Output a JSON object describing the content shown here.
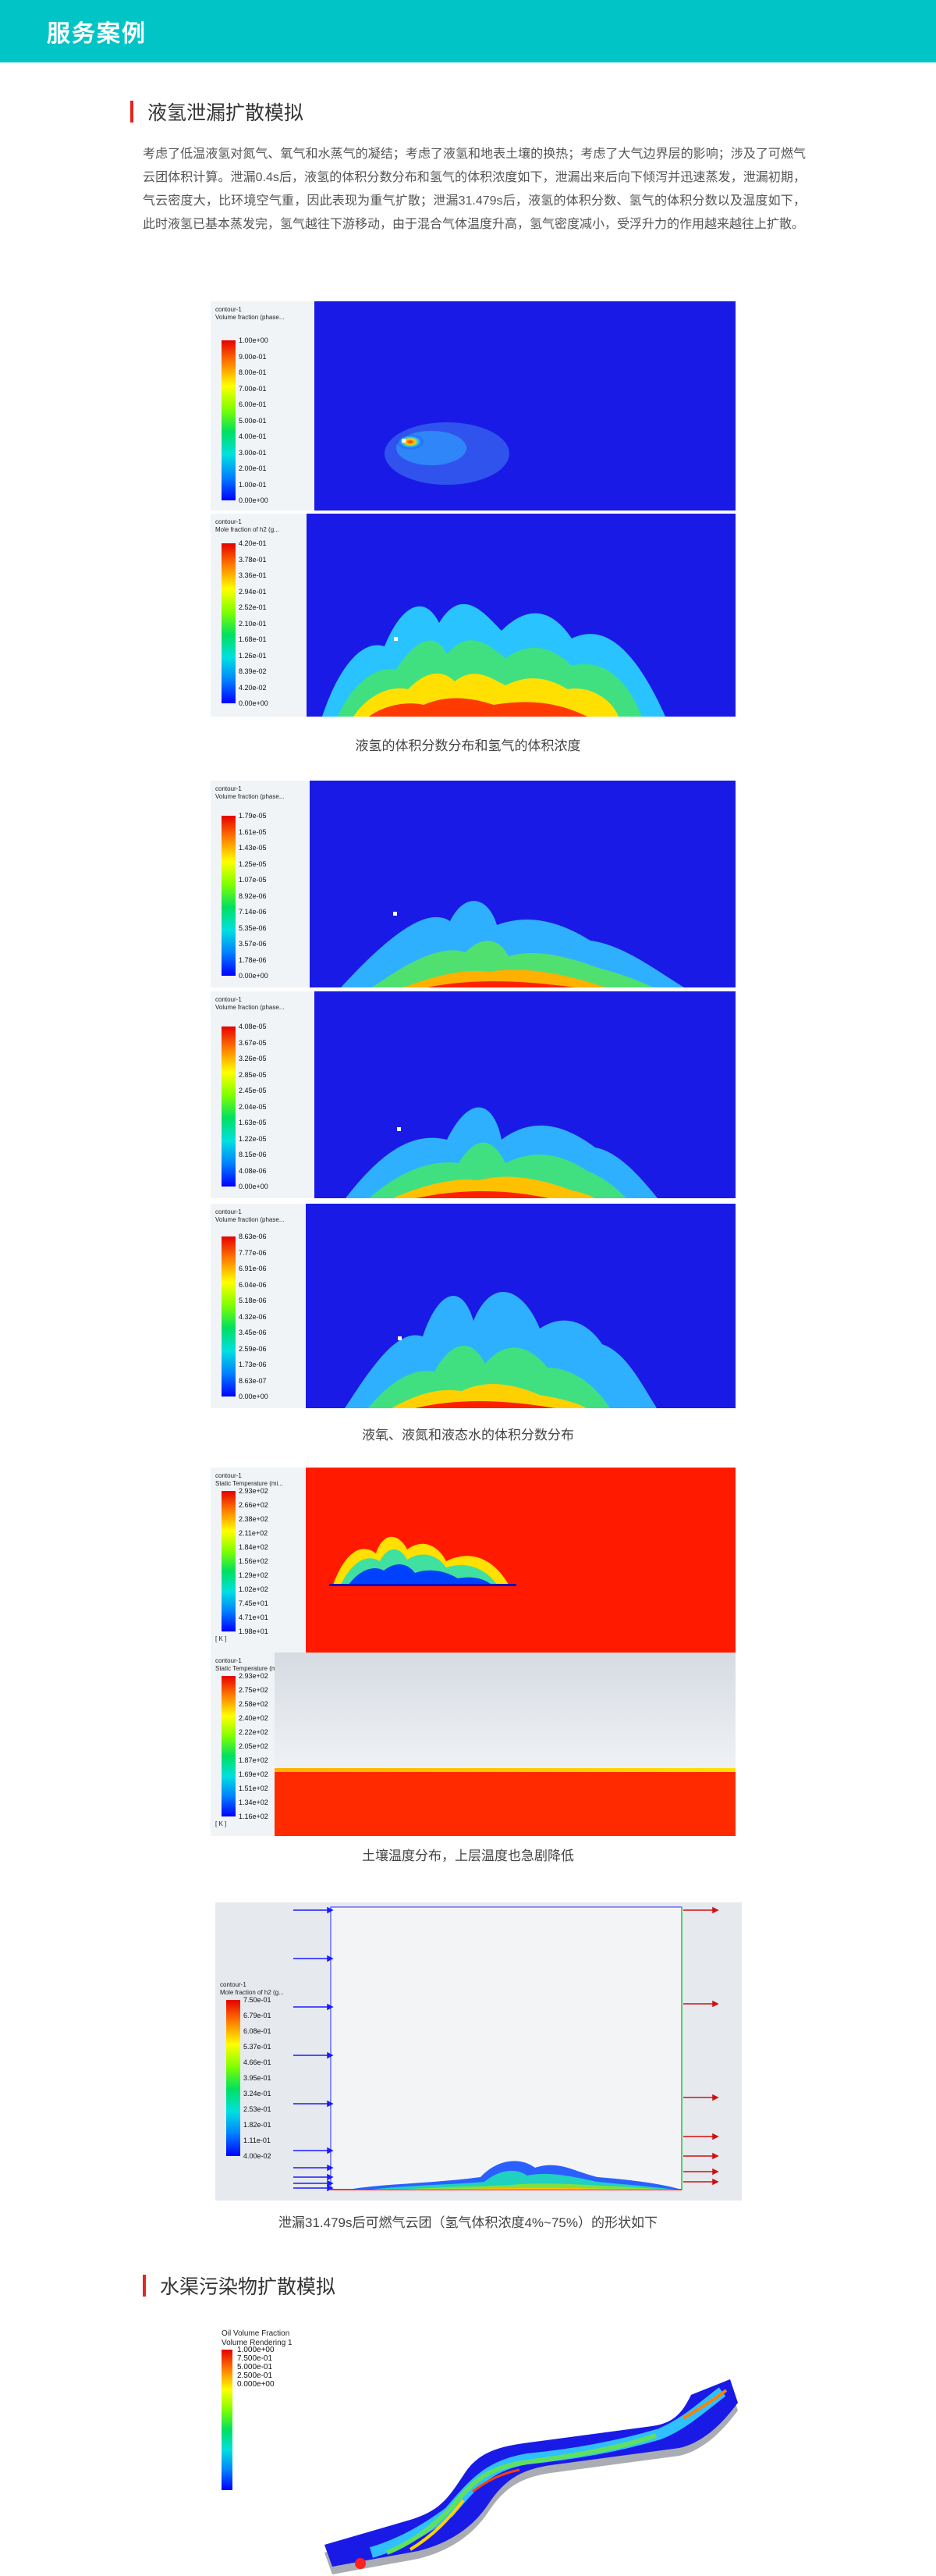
{
  "header": {
    "title": "服务案例"
  },
  "section1": {
    "title": "液氢泄漏扩散模拟",
    "intro": "考虑了低温液氢对氮气、氧气和水蒸气的凝结；考虑了液氢和地表土壤的换热；考虑了大气边界层的影响；涉及了可燃气云团体积计算。泄漏0.4s后，液氢的体积分数分布和氢气的体积浓度如下，泄漏出来后向下倾泻并迅速蒸发，泄漏初期，气云密度大，比环境空气重，因此表现为重气扩散；泄漏31.479s后，液氢的体积分数、氢气的体积分数以及温度如下，此时液氢已基本蒸发完，氢气越往下游移动，由于混合气体温度升高，氢气密度减小，受浮升力的作用越来越往上扩散。",
    "fig1": {
      "caption": "液氢的体积分数分布和氢气的体积浓度",
      "p1": {
        "legend": "contour-1\nVolume fraction (phase...",
        "ticks": [
          "1.00e+00",
          "9.00e-01",
          "8.00e-01",
          "7.00e-01",
          "6.00e-01",
          "5.00e-01",
          "4.00e-01",
          "3.00e-01",
          "2.00e-01",
          "1.00e-01",
          "0.00e+00"
        ]
      },
      "p2": {
        "legend": "contour-1\nMole fraction of h2 (g...",
        "ticks": [
          "4.20e-01",
          "3.78e-01",
          "3.36e-01",
          "2.94e-01",
          "2.52e-01",
          "2.10e-01",
          "1.68e-01",
          "1.26e-01",
          "8.39e-02",
          "4.20e-02",
          "0.00e+00"
        ]
      }
    },
    "fig2": {
      "caption": "液氧、液氮和液态水的体积分数分布",
      "p1": {
        "legend": "contour-1\nVolume fraction (phase...",
        "ticks": [
          "1.79e-05",
          "1.61e-05",
          "1.43e-05",
          "1.25e-05",
          "1.07e-05",
          "8.92e-06",
          "7.14e-06",
          "5.35e-06",
          "3.57e-06",
          "1.78e-06",
          "0.00e+00"
        ]
      },
      "p2": {
        "legend": "contour-1\nVolume fraction (phase...",
        "ticks": [
          "4.08e-05",
          "3.67e-05",
          "3.26e-05",
          "2.85e-05",
          "2.45e-05",
          "2.04e-05",
          "1.63e-05",
          "1.22e-05",
          "8.15e-06",
          "4.08e-06",
          "0.00e+00"
        ]
      },
      "p3": {
        "legend": "contour-1\nVolume fraction (phase...",
        "ticks": [
          "8.63e-06",
          "7.77e-06",
          "6.91e-06",
          "6.04e-06",
          "5.18e-06",
          "4.32e-06",
          "3.45e-06",
          "2.59e-06",
          "1.73e-06",
          "8.63e-07",
          "0.00e+00"
        ]
      }
    },
    "fig3": {
      "caption": "土壤温度分布，上层温度也急剧降低",
      "p1": {
        "legend": "contour-1\nStatic Temperature (mi...",
        "unit": "[ K ]",
        "ticks": [
          "2.93e+02",
          "2.66e+02",
          "2.38e+02",
          "2.11e+02",
          "1.84e+02",
          "1.56e+02",
          "1.29e+02",
          "1.02e+02",
          "7.45e+01",
          "4.71e+01",
          "1.98e+01"
        ]
      },
      "p2": {
        "legend": "contour-1\nStatic Temperature (mi...",
        "unit": "[ K ]",
        "ticks": [
          "2.93e+02",
          "2.75e+02",
          "2.58e+02",
          "2.40e+02",
          "2.22e+02",
          "2.05e+02",
          "1.87e+02",
          "1.69e+02",
          "1.51e+02",
          "1.34e+02",
          "1.16e+02"
        ]
      }
    },
    "fig4": {
      "caption": "泄漏31.479s后可燃气云团（氢气体积浓度4%~75%）的形状如下",
      "p1": {
        "legend": "contour-1\nMole fraction of h2 (g...",
        "ticks": [
          "7.50e-01",
          "6.79e-01",
          "6.08e-01",
          "5.37e-01",
          "4.66e-01",
          "3.95e-01",
          "3.24e-01",
          "2.53e-01",
          "1.82e-01",
          "1.11e-01",
          "4.00e-02"
        ]
      }
    }
  },
  "section2": {
    "title": "水渠污染物扩散模拟",
    "fig5": {
      "legend": "Oil Volume Fraction\nVolume Rendering 1",
      "ticks": [
        "1.000e+00",
        "7.500e-01",
        "5.000e-01",
        "2.500e-01",
        "0.000e+00"
      ]
    }
  },
  "colors": {
    "header": "#00c4c6",
    "accent": "#e3261f"
  }
}
